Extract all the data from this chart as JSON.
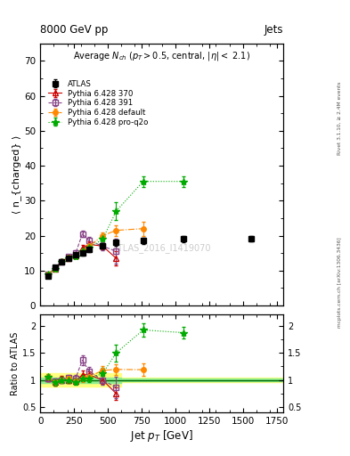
{
  "title_top": "8000 GeV pp",
  "title_right": "Jets",
  "watermark": "ATLAS_2016_I1419070",
  "rivet_text": "Rivet 3.1.10, ≥ 2.4M events",
  "arxiv_text": "mcplots.cern.ch [arXiv:1306.3436]",
  "xlabel": "Jet p_{T} [GeV]",
  "ylabel_main": "⟨ n_{charged} ⟩",
  "ylabel_ratio": "Ratio to ATLAS",
  "xlim": [
    0,
    1800
  ],
  "ylim_main": [
    0,
    75
  ],
  "ylim_ratio": [
    0.4,
    2.2
  ],
  "atlas_x": [
    55,
    110,
    160,
    212,
    262,
    312,
    362,
    462,
    562,
    762,
    1062,
    1562
  ],
  "atlas_y": [
    8.5,
    11.0,
    12.5,
    13.5,
    14.5,
    15.0,
    16.0,
    17.0,
    18.0,
    18.5,
    19.0,
    19.2
  ],
  "atlas_yerr": [
    0.3,
    0.4,
    0.5,
    0.5,
    0.5,
    0.6,
    0.6,
    0.7,
    0.8,
    0.8,
    0.8,
    0.8
  ],
  "py370_x": [
    55,
    110,
    160,
    212,
    262,
    312,
    362,
    462,
    562
  ],
  "py370_y": [
    8.8,
    10.5,
    12.8,
    13.5,
    14.2,
    16.5,
    17.5,
    17.0,
    13.5
  ],
  "py370_yerr": [
    0.3,
    0.4,
    0.5,
    0.5,
    0.6,
    0.8,
    0.9,
    1.0,
    2.0
  ],
  "py391_x": [
    55,
    110,
    160,
    212,
    262,
    312,
    362,
    462,
    562
  ],
  "py391_y": [
    8.8,
    10.8,
    12.5,
    14.0,
    15.0,
    20.5,
    18.5,
    17.0,
    15.5
  ],
  "py391_yerr": [
    0.3,
    0.4,
    0.5,
    0.6,
    0.7,
    1.0,
    1.0,
    1.2,
    3.5
  ],
  "pydef_x": [
    55,
    110,
    160,
    212,
    262,
    312,
    362,
    462,
    562,
    762
  ],
  "pydef_y": [
    9.0,
    10.5,
    12.5,
    13.8,
    14.2,
    15.5,
    17.0,
    20.0,
    21.5,
    22.0
  ],
  "pydef_yerr": [
    0.3,
    0.4,
    0.5,
    0.5,
    0.6,
    0.8,
    0.9,
    1.0,
    1.5,
    2.0
  ],
  "pyproq2o_x": [
    55,
    110,
    160,
    212,
    262,
    312,
    362,
    462,
    562,
    762,
    1062
  ],
  "pyproq2o_y": [
    9.0,
    10.5,
    12.5,
    13.5,
    14.0,
    15.5,
    16.5,
    19.0,
    27.0,
    35.5,
    35.5
  ],
  "pyproq2o_yerr": [
    0.3,
    0.4,
    0.5,
    0.5,
    0.5,
    0.7,
    0.9,
    1.5,
    2.5,
    1.5,
    1.5
  ],
  "color_atlas": "#000000",
  "color_py370": "#cc0000",
  "color_py391": "#884488",
  "color_pydef": "#ff8800",
  "color_pyproq2o": "#00aa00",
  "color_band_green": "#90ee90",
  "color_band_yellow": "#ffff80"
}
